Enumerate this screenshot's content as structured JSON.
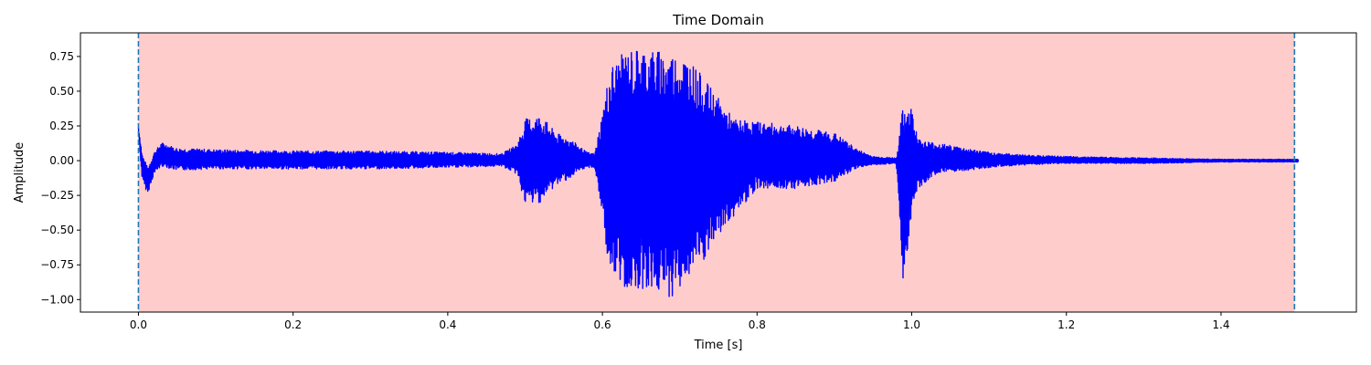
{
  "chart_data": {
    "type": "line",
    "title": "Time Domain",
    "xlabel": "Time [s]",
    "ylabel": "Amplitude",
    "xlim": [
      -0.075,
      1.575
    ],
    "ylim": [
      -1.09,
      0.92
    ],
    "xticks": [
      0.0,
      0.2,
      0.4,
      0.6,
      0.8,
      1.0,
      1.2,
      1.4
    ],
    "xtick_labels": [
      "0.0",
      "0.2",
      "0.4",
      "0.6",
      "0.8",
      "1.0",
      "1.2",
      "1.4"
    ],
    "yticks": [
      0.75,
      0.5,
      0.25,
      0.0,
      -0.25,
      -0.5,
      -0.75,
      -1.0
    ],
    "ytick_labels": [
      "0.75",
      "0.50",
      "0.25",
      "0.00",
      "−0.25",
      "−0.50",
      "−0.75",
      "−1.00"
    ],
    "grid": false,
    "legend": "none",
    "highlight_region": {
      "x_start": 0.0,
      "x_end": 1.495,
      "color": "#ffcccc"
    },
    "vlines": [
      {
        "x": 0.0,
        "style": "dashed",
        "color": "#1f77b4"
      },
      {
        "x": 1.495,
        "style": "dashed",
        "color": "#1f77b4"
      }
    ],
    "series": [
      {
        "color": "#0000ff",
        "envelope": {
          "x": [
            0.0,
            0.005,
            0.012,
            0.02,
            0.03,
            0.05,
            0.1,
            0.2,
            0.3,
            0.4,
            0.47,
            0.49,
            0.5,
            0.52,
            0.54,
            0.56,
            0.58,
            0.59,
            0.6,
            0.61,
            0.63,
            0.65,
            0.67,
            0.69,
            0.71,
            0.73,
            0.75,
            0.77,
            0.8,
            0.85,
            0.9,
            0.93,
            0.95,
            0.98,
            0.99,
            1.0,
            1.01,
            1.03,
            1.06,
            1.1,
            1.15,
            1.2,
            1.3,
            1.4,
            1.5
          ],
          "upper": [
            0.24,
            0.05,
            -0.05,
            0.06,
            0.13,
            0.09,
            0.08,
            0.07,
            0.07,
            0.06,
            0.05,
            0.12,
            0.3,
            0.33,
            0.2,
            0.15,
            0.06,
            0.05,
            0.35,
            0.68,
            0.79,
            0.82,
            0.8,
            0.78,
            0.75,
            0.6,
            0.45,
            0.3,
            0.28,
            0.25,
            0.2,
            0.08,
            0.03,
            0.02,
            0.45,
            0.38,
            0.15,
            0.13,
            0.1,
            0.06,
            0.04,
            0.03,
            0.02,
            0.01,
            0.01
          ],
          "lower": [
            0.2,
            -0.15,
            -0.24,
            -0.1,
            -0.04,
            -0.07,
            -0.06,
            -0.06,
            -0.06,
            -0.05,
            -0.04,
            -0.1,
            -0.32,
            -0.3,
            -0.18,
            -0.12,
            -0.05,
            -0.05,
            -0.4,
            -0.85,
            -0.93,
            -0.92,
            -0.95,
            -0.99,
            -0.85,
            -0.75,
            -0.55,
            -0.4,
            -0.2,
            -0.2,
            -0.15,
            -0.05,
            -0.03,
            -0.02,
            -0.97,
            -0.35,
            -0.2,
            -0.1,
            -0.08,
            -0.05,
            -0.03,
            -0.02,
            -0.02,
            -0.01,
            -0.01
          ]
        }
      }
    ]
  }
}
